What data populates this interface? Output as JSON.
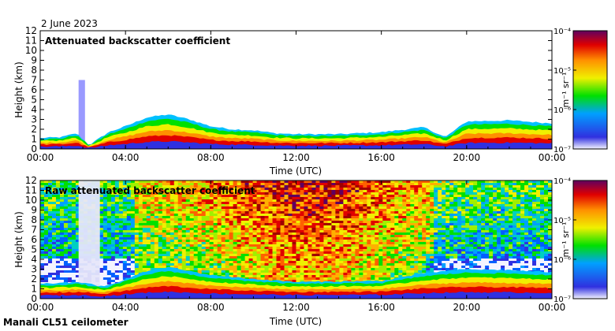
{
  "date_label": "2 June 2023",
  "footer_label": "Manali CL51 ceilometer",
  "chart_data": [
    {
      "type": "heatmap",
      "title": "Attenuated backscatter coefficient",
      "xlabel": "Time (UTC)",
      "ylabel": "Height (km)",
      "x_ticks": [
        "00:00",
        "04:00",
        "08:00",
        "12:00",
        "16:00",
        "20:00",
        "00:00"
      ],
      "x_range_hours": [
        0,
        24
      ],
      "y_ticks": [
        0,
        1,
        2,
        3,
        4,
        5,
        6,
        7,
        8,
        9,
        10,
        11,
        12
      ],
      "ylim": [
        0,
        12
      ],
      "colorbar": {
        "label": "m⁻¹ sr⁻¹",
        "ticks": [
          "10⁻⁷",
          "10⁻⁶",
          "10⁻⁵",
          "10⁻⁴"
        ],
        "scale": "log",
        "range": [
          1e-07,
          0.0001
        ]
      },
      "layer_top_km": [
        {
          "t": 0.0,
          "h": 1.1
        },
        {
          "t": 1.0,
          "h": 1.2
        },
        {
          "t": 1.7,
          "h": 1.6
        },
        {
          "t": 2.3,
          "h": 0.4
        },
        {
          "t": 3.2,
          "h": 1.7
        },
        {
          "t": 4.0,
          "h": 2.3
        },
        {
          "t": 5.0,
          "h": 3.2
        },
        {
          "t": 6.0,
          "h": 3.5
        },
        {
          "t": 7.0,
          "h": 3.0
        },
        {
          "t": 8.0,
          "h": 2.3
        },
        {
          "t": 9.0,
          "h": 2.0
        },
        {
          "t": 10.0,
          "h": 1.9
        },
        {
          "t": 11.0,
          "h": 1.6
        },
        {
          "t": 12.0,
          "h": 1.5
        },
        {
          "t": 14.0,
          "h": 1.5
        },
        {
          "t": 16.0,
          "h": 1.7
        },
        {
          "t": 18.0,
          "h": 2.2
        },
        {
          "t": 19.0,
          "h": 1.2
        },
        {
          "t": 20.0,
          "h": 2.8
        },
        {
          "t": 22.0,
          "h": 2.9
        },
        {
          "t": 24.0,
          "h": 2.6
        }
      ],
      "cloud_column": {
        "t_start": 1.8,
        "t_end": 2.1,
        "top_km": 7.0
      }
    },
    {
      "type": "heatmap",
      "title": "Raw attenuated backscatter coefficient",
      "xlabel": "Time (UTC)",
      "ylabel": "Height (km)",
      "x_ticks": [
        "00:00",
        "04:00",
        "08:00",
        "12:00",
        "16:00",
        "20:00",
        "00:00"
      ],
      "x_range_hours": [
        0,
        24
      ],
      "y_ticks": [
        0,
        1,
        2,
        3,
        4,
        5,
        6,
        7,
        8,
        9,
        10,
        11,
        12
      ],
      "ylim": [
        0,
        12
      ],
      "colorbar": {
        "label": "m⁻¹ sr⁻¹",
        "ticks": [
          "10⁻⁷",
          "10⁻⁶",
          "10⁻⁵",
          "10⁻⁴"
        ],
        "scale": "log",
        "range": [
          1e-07,
          0.0001
        ]
      },
      "layer_top_km": [
        {
          "t": 0.0,
          "h": 1.5
        },
        {
          "t": 1.0,
          "h": 1.6
        },
        {
          "t": 1.8,
          "h": 1.7
        },
        {
          "t": 3.0,
          "h": 1.2
        },
        {
          "t": 4.0,
          "h": 2.0
        },
        {
          "t": 5.0,
          "h": 2.8
        },
        {
          "t": 6.0,
          "h": 3.2
        },
        {
          "t": 7.0,
          "h": 2.8
        },
        {
          "t": 8.0,
          "h": 2.4
        },
        {
          "t": 10.0,
          "h": 2.0
        },
        {
          "t": 12.0,
          "h": 1.7
        },
        {
          "t": 16.0,
          "h": 1.8
        },
        {
          "t": 18.0,
          "h": 2.6
        },
        {
          "t": 20.0,
          "h": 3.0
        },
        {
          "t": 22.0,
          "h": 2.9
        },
        {
          "t": 24.0,
          "h": 2.7
        }
      ],
      "cloud_column": {
        "t_start": 1.8,
        "t_end": 2.8,
        "top_km": 12.0
      }
    }
  ]
}
